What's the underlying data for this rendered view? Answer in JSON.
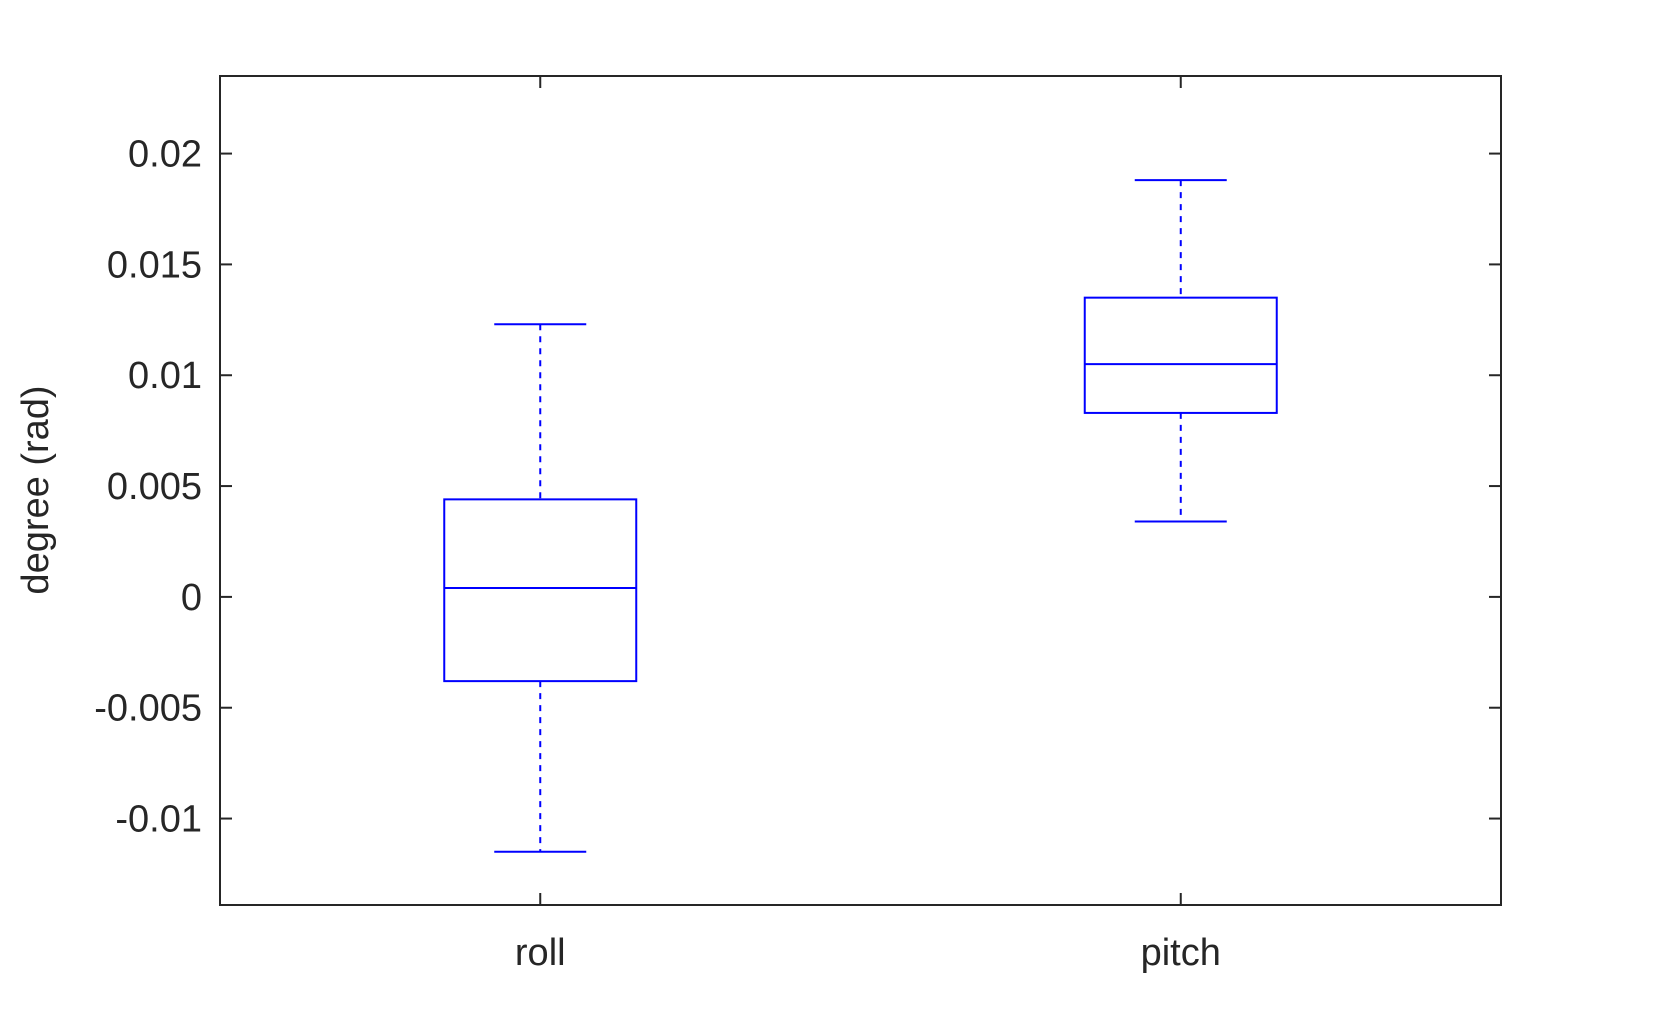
{
  "chart_data": {
    "type": "box",
    "categories": [
      "roll",
      "pitch"
    ],
    "boxes": [
      {
        "category": "roll",
        "whisker_low": -0.0115,
        "q1": -0.0038,
        "median": 0.0004,
        "q3": 0.0044,
        "whisker_high": 0.0123
      },
      {
        "category": "pitch",
        "whisker_low": 0.0034,
        "q1": 0.0083,
        "median": 0.0105,
        "q3": 0.0135,
        "whisker_high": 0.0188
      }
    ],
    "ylabel": "degree (rad)",
    "xlabel": "",
    "title": "",
    "ylim": [
      -0.0139,
      0.0235
    ],
    "yticks": [
      -0.01,
      -0.005,
      0,
      0.005,
      0.01,
      0.015,
      0.02
    ],
    "ytick_labels": [
      "-0.01",
      "-0.005",
      "0",
      "0.005",
      "0.01",
      "0.015",
      "0.02"
    ],
    "grid": false,
    "colors": {
      "box": "#0000ff",
      "axis": "#262626"
    }
  }
}
